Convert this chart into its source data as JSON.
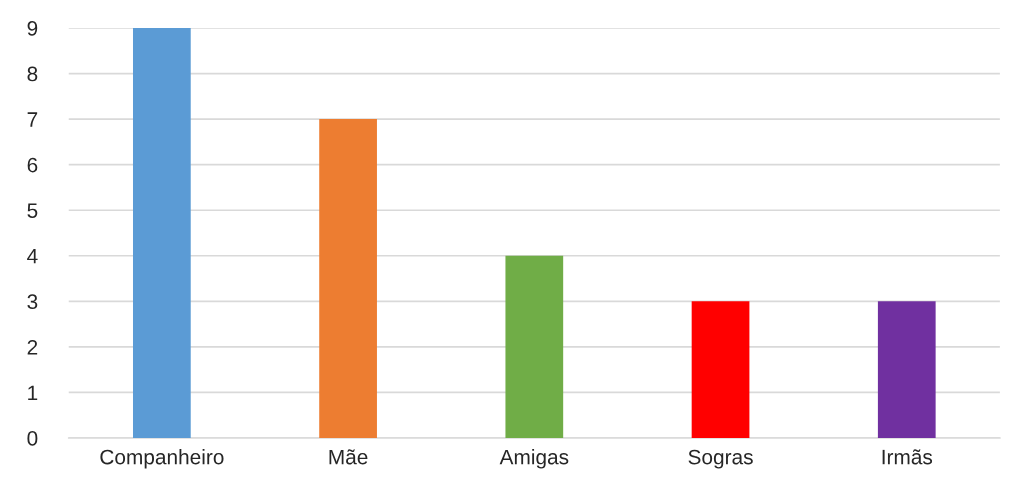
{
  "chart_data": {
    "type": "bar",
    "categories": [
      "Companheiro",
      "Mãe",
      "Amigas",
      "Sogras",
      "Irmãs"
    ],
    "values": [
      9,
      7,
      4,
      3,
      3
    ],
    "colors": [
      "#5b9bd5",
      "#ed7d31",
      "#70ad47",
      "#ff0000",
      "#7030a0"
    ],
    "ylim": [
      0,
      9
    ],
    "yticks": [
      0,
      1,
      2,
      3,
      4,
      5,
      6,
      7,
      8,
      9
    ],
    "grid": "y",
    "legend": false
  }
}
